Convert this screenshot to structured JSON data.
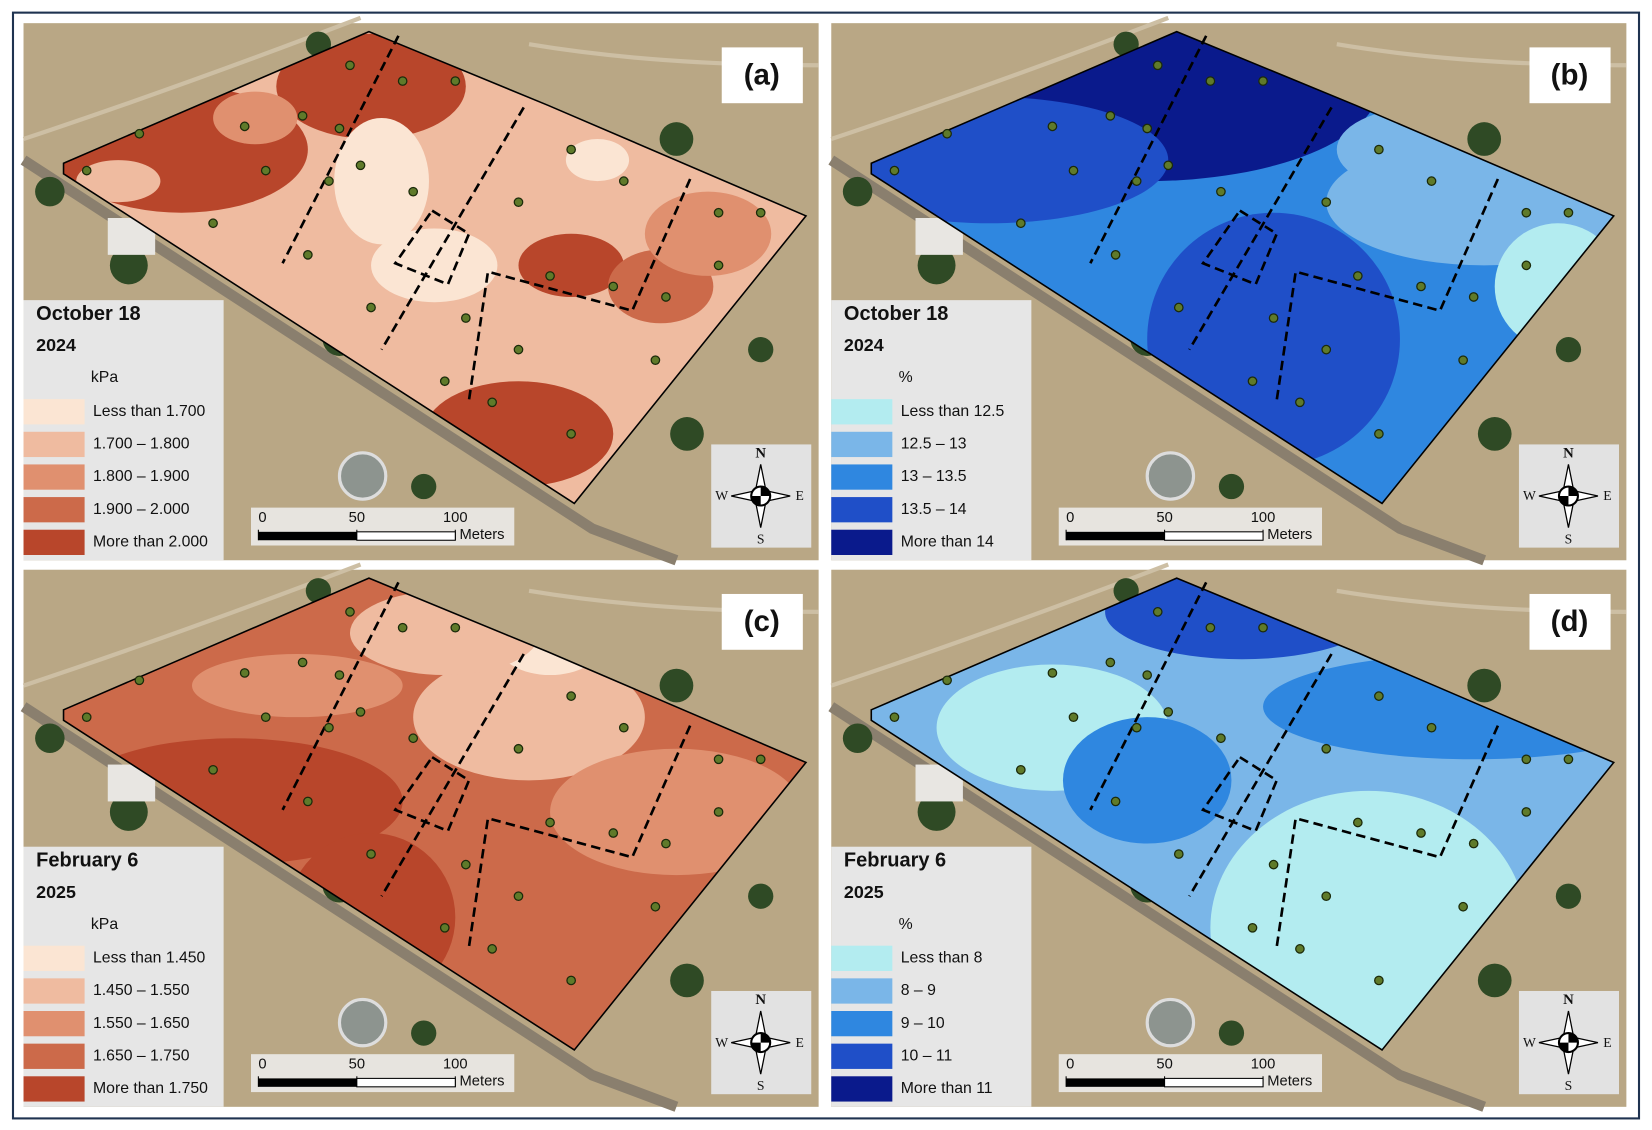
{
  "panels": [
    {
      "label": "(a)",
      "date": "October 18",
      "year": "2024",
      "unit": "kPa",
      "legend": [
        {
          "label": "Less than 1.700",
          "color": "#fbe5d3"
        },
        {
          "label": "1.700 – 1.800",
          "color": "#efbba0"
        },
        {
          "label": "1.800 – 1.900",
          "color": "#e0906f"
        },
        {
          "label": "1.900 – 2.000",
          "color": "#cc6a4a"
        },
        {
          "label": "More than 2.000",
          "color": "#b8462b"
        }
      ]
    },
    {
      "label": "(b)",
      "date": "October 18",
      "year": "2024",
      "unit": "%",
      "legend": [
        {
          "label": "Less than 12.5",
          "color": "#b3ecf0"
        },
        {
          "label": "12.5 – 13",
          "color": "#7ab6e8"
        },
        {
          "label": "13 – 13.5",
          "color": "#2f87e0"
        },
        {
          "label": "13.5 – 14",
          "color": "#1f4fc8"
        },
        {
          "label": "More than 14",
          "color": "#0a1a8c"
        }
      ]
    },
    {
      "label": "(c)",
      "date": "February 6",
      "year": "2025",
      "unit": "kPa",
      "legend": [
        {
          "label": "Less than 1.450",
          "color": "#fbe5d3"
        },
        {
          "label": "1.450 – 1.550",
          "color": "#efbba0"
        },
        {
          "label": "1.550 – 1.650",
          "color": "#e0906f"
        },
        {
          "label": "1.650 – 1.750",
          "color": "#cc6a4a"
        },
        {
          "label": "More than 1.750",
          "color": "#b8462b"
        }
      ]
    },
    {
      "label": "(d)",
      "date": "February 6",
      "year": "2025",
      "unit": "%",
      "legend": [
        {
          "label": "Less than 8",
          "color": "#b3ecf0"
        },
        {
          "label": "8 – 9",
          "color": "#7ab6e8"
        },
        {
          "label": "9 – 10",
          "color": "#2f87e0"
        },
        {
          "label": "10 – 11",
          "color": "#1f4fc8"
        },
        {
          "label": "More than 11",
          "color": "#0a1a8c"
        }
      ]
    }
  ],
  "scale_bar": {
    "ticks": [
      0,
      50,
      100
    ],
    "unit": "Meters"
  },
  "compass": {
    "north": "N",
    "east": "E",
    "south": "S",
    "west": "W"
  }
}
